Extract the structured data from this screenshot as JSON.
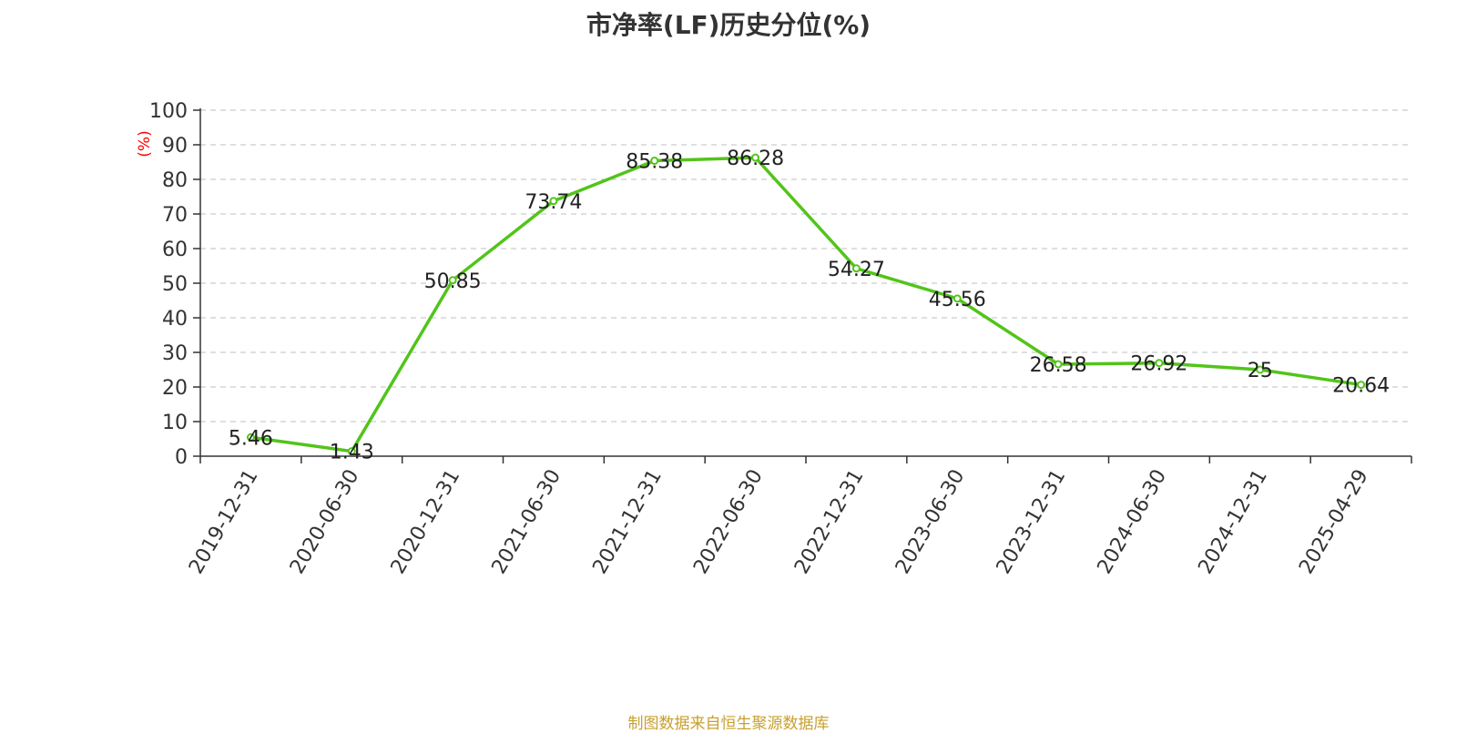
{
  "page": {
    "title": "市净率(LF)历史分位(%)",
    "source": "制图数据来自恒生聚源数据库"
  },
  "chart_data": {
    "type": "line",
    "title": "市净率(LF)历史分位(%)",
    "ylabel": "(%)",
    "xlabel": "",
    "ylim": [
      0,
      100
    ],
    "ytick_step": 10,
    "grid": true,
    "categories": [
      "2019-12-31",
      "2020-06-30",
      "2020-12-31",
      "2021-06-30",
      "2021-12-31",
      "2022-06-30",
      "2022-12-31",
      "2023-06-30",
      "2023-12-31",
      "2024-06-30",
      "2024-12-31",
      "2025-04-29"
    ],
    "series": [
      {
        "values": [
          5.46,
          1.43,
          50.85,
          73.74,
          85.38,
          86.28,
          54.27,
          45.56,
          26.58,
          26.92,
          25,
          20.64
        ],
        "labels": [
          "5.46",
          "1.43",
          "50.85",
          "73.74",
          "85.38",
          "86.28",
          "54.27",
          "45.56",
          "26.58",
          "26.92",
          "25",
          "20.64"
        ]
      }
    ],
    "colors": {
      "line": "#52c41a",
      "grid": "#cccccc",
      "axis": "#333333",
      "ylabel": "#ff0000",
      "text": "#333333"
    }
  }
}
